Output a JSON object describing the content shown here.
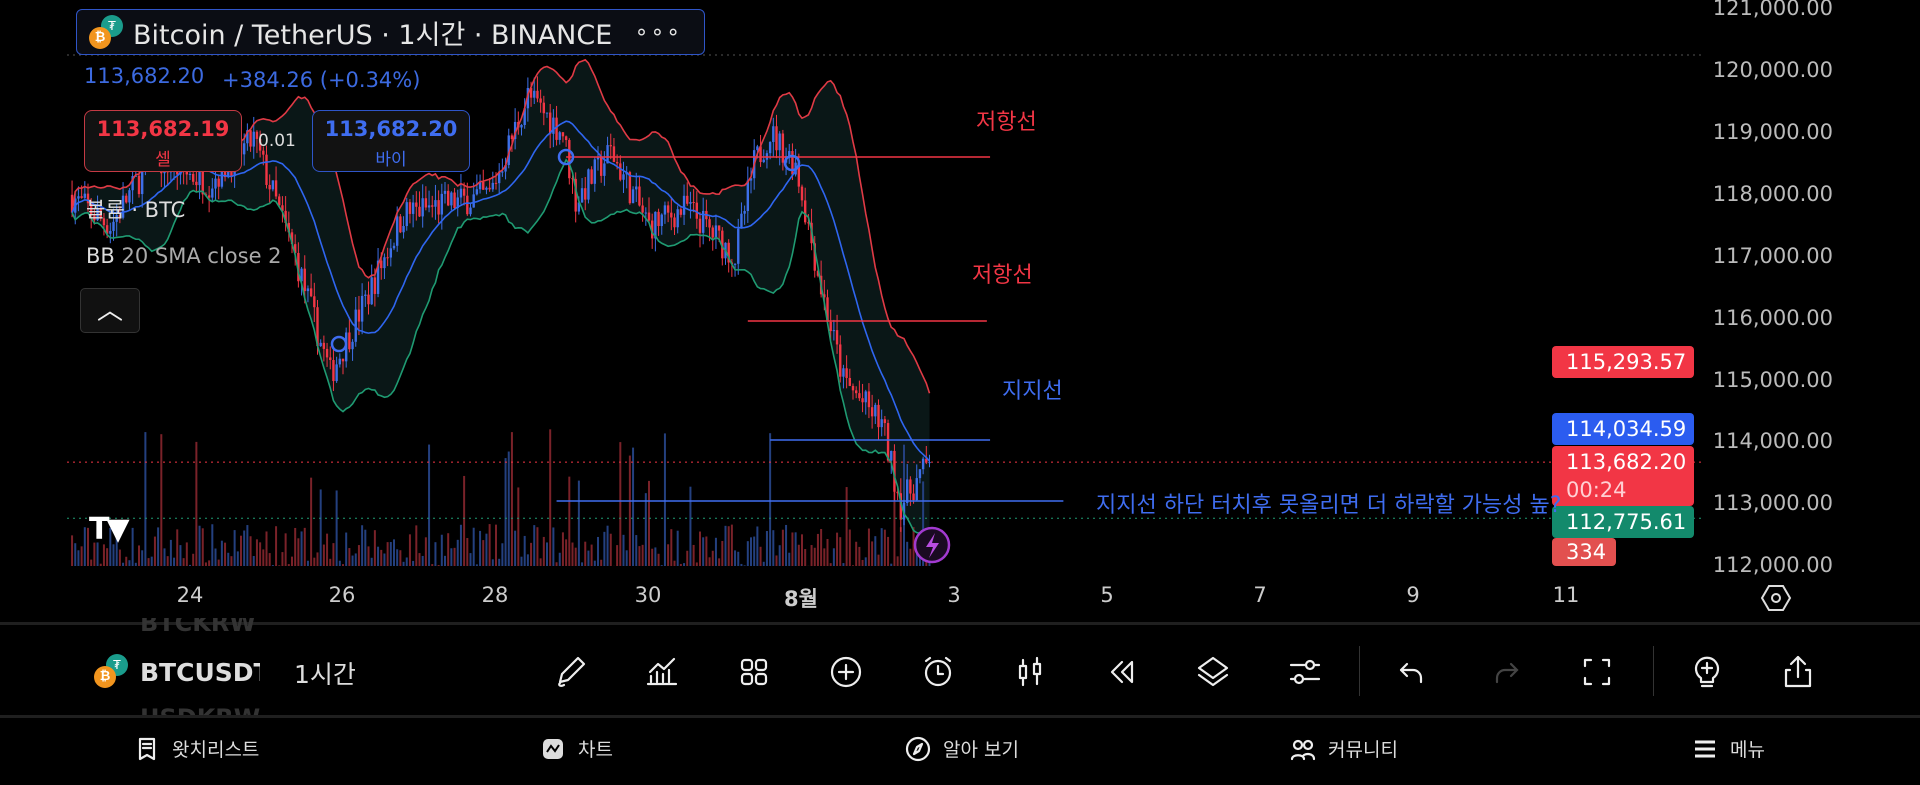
{
  "header": {
    "title": "Bitcoin / TetherUS · 1시간 · BINANCE",
    "more_icon": "more-dots-icon"
  },
  "legend": {
    "last_price": "113,682.20",
    "change": "+384.26 (+0.34%)",
    "sell": {
      "price": "113,682.19",
      "label": "셀"
    },
    "buy": {
      "price": "113,682.20",
      "label": "바이"
    },
    "quantity": "0.01",
    "volume": "볼륨 · BTC",
    "bb_name": "BB",
    "bb_params": "20 SMA close 2"
  },
  "price_axis": {
    "ticks": [
      "121,000.00",
      "120,000.00",
      "119,000.00",
      "118,000.00",
      "117,000.00",
      "116,000.00",
      "115,000.00",
      "114,000.00",
      "113,000.00",
      "112,000.00"
    ],
    "badges": {
      "upper_band": "115,293.57",
      "basis": "114,034.59",
      "last": "113,682.20",
      "countdown": "00:24",
      "lower_band": "112,775.61",
      "volume": "334"
    }
  },
  "date_axis": [
    "24",
    "26",
    "28",
    "30",
    "8월",
    "3",
    "5",
    "7",
    "9",
    "11"
  ],
  "annotations": [
    {
      "text": "저항선",
      "color": "#f23645"
    },
    {
      "text": "저항선",
      "color": "#f23645"
    },
    {
      "text": "지지선",
      "color": "#3f6df0"
    },
    {
      "text": "지지선  하단 터치후 못올리면  더 하락할 가능성 높?",
      "color": "#3f6df0"
    }
  ],
  "chart_data": {
    "type": "candlestick",
    "timeframe": "1h",
    "anchors": [
      [
        "07-22 10:00",
        118000
      ],
      [
        "07-22 23:00",
        117500
      ],
      [
        "07-23 12:00",
        118600
      ],
      [
        "07-24 06:00",
        118200
      ],
      [
        "07-24 20:00",
        118900
      ],
      [
        "07-25 09:00",
        117000
      ],
      [
        "07-25 20:00",
        115100
      ],
      [
        "07-26 08:00",
        116400
      ],
      [
        "07-26 19:00",
        117700
      ],
      [
        "07-27 22:00",
        118000
      ],
      [
        "07-28 10:00",
        119600
      ],
      [
        "07-28 21:00",
        119000
      ],
      [
        "07-29 01:00",
        117900
      ],
      [
        "07-29 12:00",
        118700
      ],
      [
        "07-30 00:00",
        117500
      ],
      [
        "07-30 12:00",
        117800
      ],
      [
        "07-31 03:00",
        117000
      ],
      [
        "07-31 09:00",
        118500
      ],
      [
        "07-31 14:00",
        119000
      ],
      [
        "07-31 22:00",
        118500
      ],
      [
        "08-01 06:00",
        116500
      ],
      [
        "08-01 13:00",
        115000
      ],
      [
        "08-02 01:00",
        114300
      ],
      [
        "08-02 07:00",
        113000
      ],
      [
        "08-02 16:00",
        113682.2
      ]
    ],
    "indicator": "Bollinger Bands 20 SMA close 2",
    "lines": [
      {
        "from": "07-28 22:00",
        "to": "08-03 11:00",
        "price": 118611,
        "color": "#f23645"
      },
      {
        "from": "07-31 07:00",
        "to": "08-03 10:00",
        "price": 115962,
        "color": "#f23645"
      },
      {
        "from": "07-31 14:00",
        "to": "08-03 11:00",
        "price": 114039,
        "color": "#3f6df0"
      },
      {
        "from": "07-28 19:00",
        "to": "08-04 10:00",
        "price": 113053,
        "color": "#3f6df0"
      }
    ],
    "ylim": [
      112000,
      121000
    ],
    "colors": {
      "up": "#3d6fe8",
      "down": "#f23645",
      "basis": "#2f66f0",
      "upper": "#e03a45",
      "lower": "#1f9b72"
    }
  },
  "toolbar": {
    "symbol": "BTCUSDT",
    "symbol_above": "BTCKRW",
    "symbol_below": "USDKRW",
    "timeframe": "1시간",
    "tools": [
      "pencil-icon",
      "indicators-icon",
      "templates-icon",
      "add-icon",
      "alert-clock-icon",
      "candle-type-icon",
      "replay-icon",
      "layers-icon",
      "settings-sliders-icon",
      "undo-icon",
      "redo-icon",
      "fullscreen-icon",
      "ideas-icon",
      "share-icon"
    ]
  },
  "nav": [
    {
      "label": "왓치리스트",
      "icon": "watchlist-icon"
    },
    {
      "label": "차트",
      "icon": "chart-icon"
    },
    {
      "label": "알아 보기",
      "icon": "compass-icon"
    },
    {
      "label": "커뮤니티",
      "icon": "community-icon"
    },
    {
      "label": "메뉴",
      "icon": "menu-icon"
    }
  ]
}
